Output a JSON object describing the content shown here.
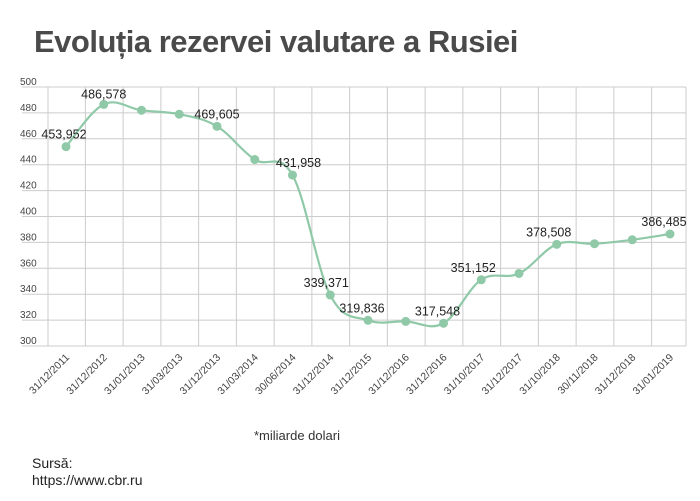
{
  "title": "Evoluția rezervei valutare a Rusiei",
  "note": "*miliarde dolari",
  "source": {
    "label": "Sursă:",
    "url": "https://www.cbr.ru"
  },
  "colors": {
    "line": "#8fc9a8",
    "grid": "#cccccc",
    "text": "#222222",
    "title": "#4a4a4a"
  },
  "chart_data": {
    "type": "line",
    "title": "Evoluția rezervei valutare a Rusiei",
    "xlabel": "",
    "ylabel": "",
    "ylim": [
      300,
      500
    ],
    "yticks": [
      300,
      320,
      340,
      360,
      380,
      400,
      420,
      440,
      460,
      480,
      500
    ],
    "categories": [
      "31/12/2011",
      "31/12/2012",
      "31/01/2013",
      "31/03/2013",
      "31/12/2013",
      "31/03/2014",
      "30/06/2014",
      "31/12/2014",
      "31/12/2015",
      "31/12/2016",
      "31/12/2016",
      "31/10/2017",
      "31/12/2017",
      "31/10/2018",
      "30/11/2018",
      "31/12/2018",
      "31/01/2019"
    ],
    "values": [
      453.952,
      486.578,
      482,
      479,
      469.605,
      444,
      431.958,
      339.371,
      319.836,
      319,
      317.548,
      351.152,
      356,
      378.508,
      379,
      382,
      386.485
    ],
    "data_labels": [
      "453,952",
      "486,578",
      "",
      "",
      "469,605",
      "",
      "431,958",
      "339,371",
      "319,836",
      "",
      "317,548",
      "351,152",
      "",
      "378,508",
      "",
      "",
      "386,485"
    ],
    "grid": true,
    "legend": "none"
  }
}
